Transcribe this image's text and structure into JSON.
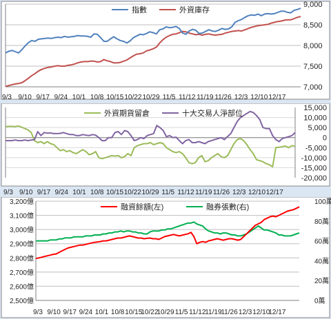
{
  "chart_data": [
    {
      "type": "line",
      "x_ticks": [
        "9/3",
        "9/10",
        "9/17",
        "9/24",
        "10/1",
        "10/8",
        "10/15",
        "10/22",
        "10/29",
        "11/5",
        "11/12",
        "11/19",
        "11/26",
        "12/3",
        "12/10",
        "12/17"
      ],
      "y_left_ticks": [
        "7,000",
        "7,500",
        "8,000",
        "8,500",
        "9,000"
      ],
      "ylim_left": [
        7000,
        9000
      ],
      "ylim_right": [
        0,
        100
      ],
      "legend_position": "top-center",
      "grid": true,
      "series": [
        {
          "name": "指數",
          "color": "#4f81bd",
          "axis": "left",
          "values": [
            7820,
            7860,
            7880,
            7850,
            7820,
            7900,
            7990,
            8070,
            8120,
            8100,
            8150,
            8160,
            8170,
            8180,
            8170,
            8190,
            8200,
            8190,
            8220,
            8200,
            8210,
            8220,
            8240,
            8230,
            8230,
            8220,
            8200,
            8280,
            8270,
            8190,
            8100,
            8100,
            8160,
            8210,
            8160,
            8120,
            8100,
            8060,
            8110,
            8190,
            8230,
            8270,
            8260,
            8290,
            8330,
            8310,
            8280,
            8380,
            8400,
            8450,
            8430,
            8440,
            8460,
            8410,
            8300,
            8270,
            8350,
            8390,
            8370,
            8290,
            8300,
            8340,
            8380,
            8350,
            8340,
            8370,
            8410,
            8390,
            8400,
            8450,
            8560,
            8600,
            8630,
            8680,
            8720,
            8740,
            8730,
            8760,
            8720,
            8760,
            8770,
            8760,
            8770,
            8800,
            8830,
            8830,
            8800,
            8790,
            8850,
            8870,
            8900
          ]
        },
        {
          "name": "外資庫存",
          "color": "#c0504d",
          "axis": "left",
          "values": [
            7010,
            7030,
            7050,
            7070,
            7080,
            7100,
            7150,
            7210,
            7270,
            7320,
            7380,
            7420,
            7450,
            7470,
            7480,
            7500,
            7510,
            7500,
            7500,
            7520,
            7530,
            7550,
            7580,
            7600,
            7610,
            7610,
            7620,
            7620,
            7600,
            7610,
            7660,
            7630,
            7610,
            7580,
            7580,
            7590,
            7620,
            7650,
            7700,
            7750,
            7790,
            7800,
            7820,
            7870,
            7890,
            7920,
            7960,
            8060,
            8140,
            8200,
            8240,
            8270,
            8280,
            8310,
            8340,
            8330,
            8300,
            8280,
            8260,
            8270,
            8250,
            8270,
            8280,
            8260,
            8250,
            8260,
            8270,
            8300,
            8320,
            8340,
            8350,
            8360,
            8350,
            8380,
            8410,
            8440,
            8460,
            8480,
            8490,
            8500,
            8510,
            8540,
            8560,
            8580,
            8590,
            8610,
            8620,
            8620,
            8650,
            8680,
            8700
          ]
        }
      ]
    },
    {
      "type": "line",
      "x_ticks": [
        "9/3",
        "9/10",
        "9/17",
        "9/24",
        "10/1",
        "10/8",
        "10/15",
        "10/22",
        "10/29",
        "11/5",
        "11/12",
        "11/19",
        "11/26",
        "12/3",
        "12/10",
        "12/17"
      ],
      "y_right_ticks": [
        "15,000",
        "10,000",
        "5,000",
        "0",
        "-5,000",
        "-10,000",
        "-15,000",
        "-20,000"
      ],
      "ylim": [
        -20000,
        15000
      ],
      "legend_position": "top-center",
      "grid": true,
      "series": [
        {
          "name": "外資期貨留倉",
          "color": "#9bbb59",
          "values": [
            5500,
            5600,
            5600,
            5500,
            5800,
            5200,
            4500,
            3800,
            2500,
            -1500,
            -2500,
            -2000,
            -3000,
            -2000,
            -3000,
            -3500,
            -5000,
            -6500,
            -6000,
            -7000,
            -6500,
            -7500,
            -8000,
            -7000,
            -6000,
            -7000,
            -8500,
            -8000,
            -7000,
            -10000,
            -10500,
            -10000,
            -9500,
            -9000,
            -9200,
            -9000,
            -10000,
            -9500,
            -8000,
            -9000,
            -5000,
            -4000,
            -3500,
            -3000,
            -3000,
            -2500,
            -3500,
            -3000,
            -2500,
            -3000,
            -5000,
            -6000,
            -7000,
            -7500,
            -7000,
            -8000,
            -10000,
            -12500,
            -13000,
            -12500,
            -10000,
            -9000,
            -12000,
            -11500,
            -10000,
            -9000,
            -8000,
            -9500,
            -10000,
            -9000,
            -6000,
            -3000,
            -1000,
            -500,
            -1500,
            -3500,
            -6000,
            -8000,
            -11000,
            -11500,
            -12000,
            -13000,
            -13500,
            -14500,
            -5000,
            -4800,
            -4500,
            -4200,
            -5000,
            -4000,
            -4300
          ]
        },
        {
          "name": "十大交易人淨部位",
          "color": "#8064a2",
          "values": [
            -1500,
            -1500,
            -1500,
            -1200,
            -1500,
            -1500,
            -1200,
            -1500,
            -1200,
            -1000,
            3000,
            1000,
            2500,
            2200,
            2300,
            2000,
            2000,
            2100,
            2500,
            2000,
            1500,
            1500,
            1000,
            1000,
            1500,
            1200,
            1000,
            1500,
            1200,
            0,
            -1500,
            -1500,
            0,
            0,
            2500,
            3000,
            1500,
            3500,
            3000,
            1000,
            -1500,
            -1000,
            0,
            -500,
            1000,
            1500,
            2000,
            6000,
            5000,
            3500,
            500,
            1000,
            0,
            200,
            -1500,
            -3000,
            -1500,
            -1000,
            -2500,
            -2500,
            -2000,
            -2500,
            -3000,
            -2000,
            -1500,
            -1000,
            -500,
            0,
            -1000,
            500,
            2000,
            5000,
            8000,
            10000,
            11000,
            12000,
            13000,
            12500,
            11000,
            9000,
            5000,
            4500,
            4500,
            1000,
            -1000,
            -2000,
            -500,
            0,
            500,
            1000,
            2500
          ]
        }
      ]
    },
    {
      "type": "line",
      "x_ticks": [
        "9/3",
        "9/10",
        "9/17",
        "9/24",
        "10/1",
        "10/8",
        "10/15",
        "10/22",
        "10/29",
        "11/5",
        "11/12",
        "11/19",
        "11/26",
        "12/3",
        "12/10",
        "12/17"
      ],
      "y_left_ticks": [
        "2,500億",
        "2,600億",
        "2,700億",
        "2,800億",
        "2,900億",
        "3,000億",
        "3,100億",
        "3,200億"
      ],
      "y_right_ticks": [
        "0萬",
        "20萬",
        "40萬",
        "60萬",
        "80萬",
        "100萬"
      ],
      "ylim_left": [
        2500,
        3200
      ],
      "ylim_right": [
        0,
        100
      ],
      "legend_position": "top-center",
      "grid": true,
      "series": [
        {
          "name": "融資餘額(左)",
          "color": "#ff0000",
          "axis": "left",
          "values": [
            2795,
            2800,
            2805,
            2810,
            2815,
            2820,
            2825,
            2828,
            2840,
            2850,
            2860,
            2870,
            2875,
            2880,
            2885,
            2890,
            2890,
            2895,
            2900,
            2905,
            2910,
            2912,
            2915,
            2920,
            2920,
            2925,
            2930,
            2935,
            2940,
            2940,
            2945,
            2950,
            2955,
            2950,
            2945,
            2940,
            2940,
            2935,
            2938,
            2940,
            2935,
            2935,
            2930,
            2940,
            2950,
            2955,
            2960,
            2965,
            2960,
            2955,
            2960,
            2965,
            2970,
            2980,
            2950,
            2900,
            2910,
            2915,
            2910,
            2920,
            2925,
            2930,
            2935,
            2930,
            2925,
            2930,
            2935,
            2935,
            2930,
            2925,
            2930,
            2950,
            2970,
            2990,
            3010,
            3030,
            3040,
            3050,
            3070,
            3080,
            3090,
            3095,
            3090,
            3100,
            3110,
            3120,
            3130,
            3135,
            3140,
            3150,
            3160
          ]
        },
        {
          "name": "融券張數(右)",
          "color": "#00b050",
          "axis": "right",
          "values": [
            60,
            60,
            60,
            60,
            60,
            61,
            61,
            61,
            62,
            62,
            63,
            63,
            63,
            64,
            64,
            64,
            64,
            65,
            65,
            65,
            66,
            66,
            66,
            67,
            67,
            68,
            68,
            69,
            69,
            70,
            69,
            70,
            70,
            69,
            69,
            68,
            68,
            67,
            67,
            69,
            70,
            70,
            70,
            71,
            71,
            72,
            72,
            73,
            74,
            75,
            76,
            77,
            78,
            78,
            79,
            77,
            76,
            75,
            72,
            70,
            69,
            68,
            68,
            67,
            68,
            68,
            67,
            66,
            66,
            65,
            65,
            66,
            67,
            69,
            71,
            73,
            75,
            73,
            71,
            71,
            70,
            69,
            68,
            66,
            66,
            65,
            65,
            65,
            66,
            67,
            68
          ]
        }
      ]
    }
  ]
}
